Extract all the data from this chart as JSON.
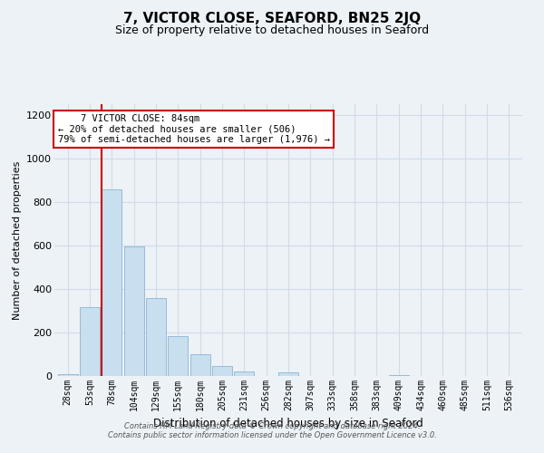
{
  "title": "7, VICTOR CLOSE, SEAFORD, BN25 2JQ",
  "subtitle": "Size of property relative to detached houses in Seaford",
  "xlabel": "Distribution of detached houses by size in Seaford",
  "ylabel": "Number of detached properties",
  "bin_labels": [
    "28sqm",
    "53sqm",
    "78sqm",
    "104sqm",
    "129sqm",
    "155sqm",
    "180sqm",
    "205sqm",
    "231sqm",
    "256sqm",
    "282sqm",
    "307sqm",
    "333sqm",
    "358sqm",
    "383sqm",
    "409sqm",
    "434sqm",
    "460sqm",
    "485sqm",
    "511sqm",
    "536sqm"
  ],
  "bar_values": [
    10,
    315,
    860,
    595,
    360,
    185,
    100,
    45,
    20,
    0,
    18,
    0,
    0,
    0,
    0,
    5,
    0,
    0,
    0,
    0,
    0
  ],
  "bar_color": "#c8dff0",
  "bar_edge_color": "#8ab4d4",
  "vline_index": 2,
  "vline_color": "#cc0000",
  "annotation_title": "7 VICTOR CLOSE: 84sqm",
  "annotation_line1": "← 20% of detached houses are smaller (506)",
  "annotation_line2": "79% of semi-detached houses are larger (1,976) →",
  "annotation_box_color": "#ffffff",
  "annotation_box_edge": "#cc0000",
  "ylim": [
    0,
    1250
  ],
  "yticks": [
    0,
    200,
    400,
    600,
    800,
    1000,
    1200
  ],
  "footer_line1": "Contains HM Land Registry data © Crown copyright and database right 2024.",
  "footer_line2": "Contains public sector information licensed under the Open Government Licence v3.0.",
  "background_color": "#edf2f7",
  "grid_color": "#d0dce8",
  "title_fontsize": 11,
  "subtitle_fontsize": 9
}
